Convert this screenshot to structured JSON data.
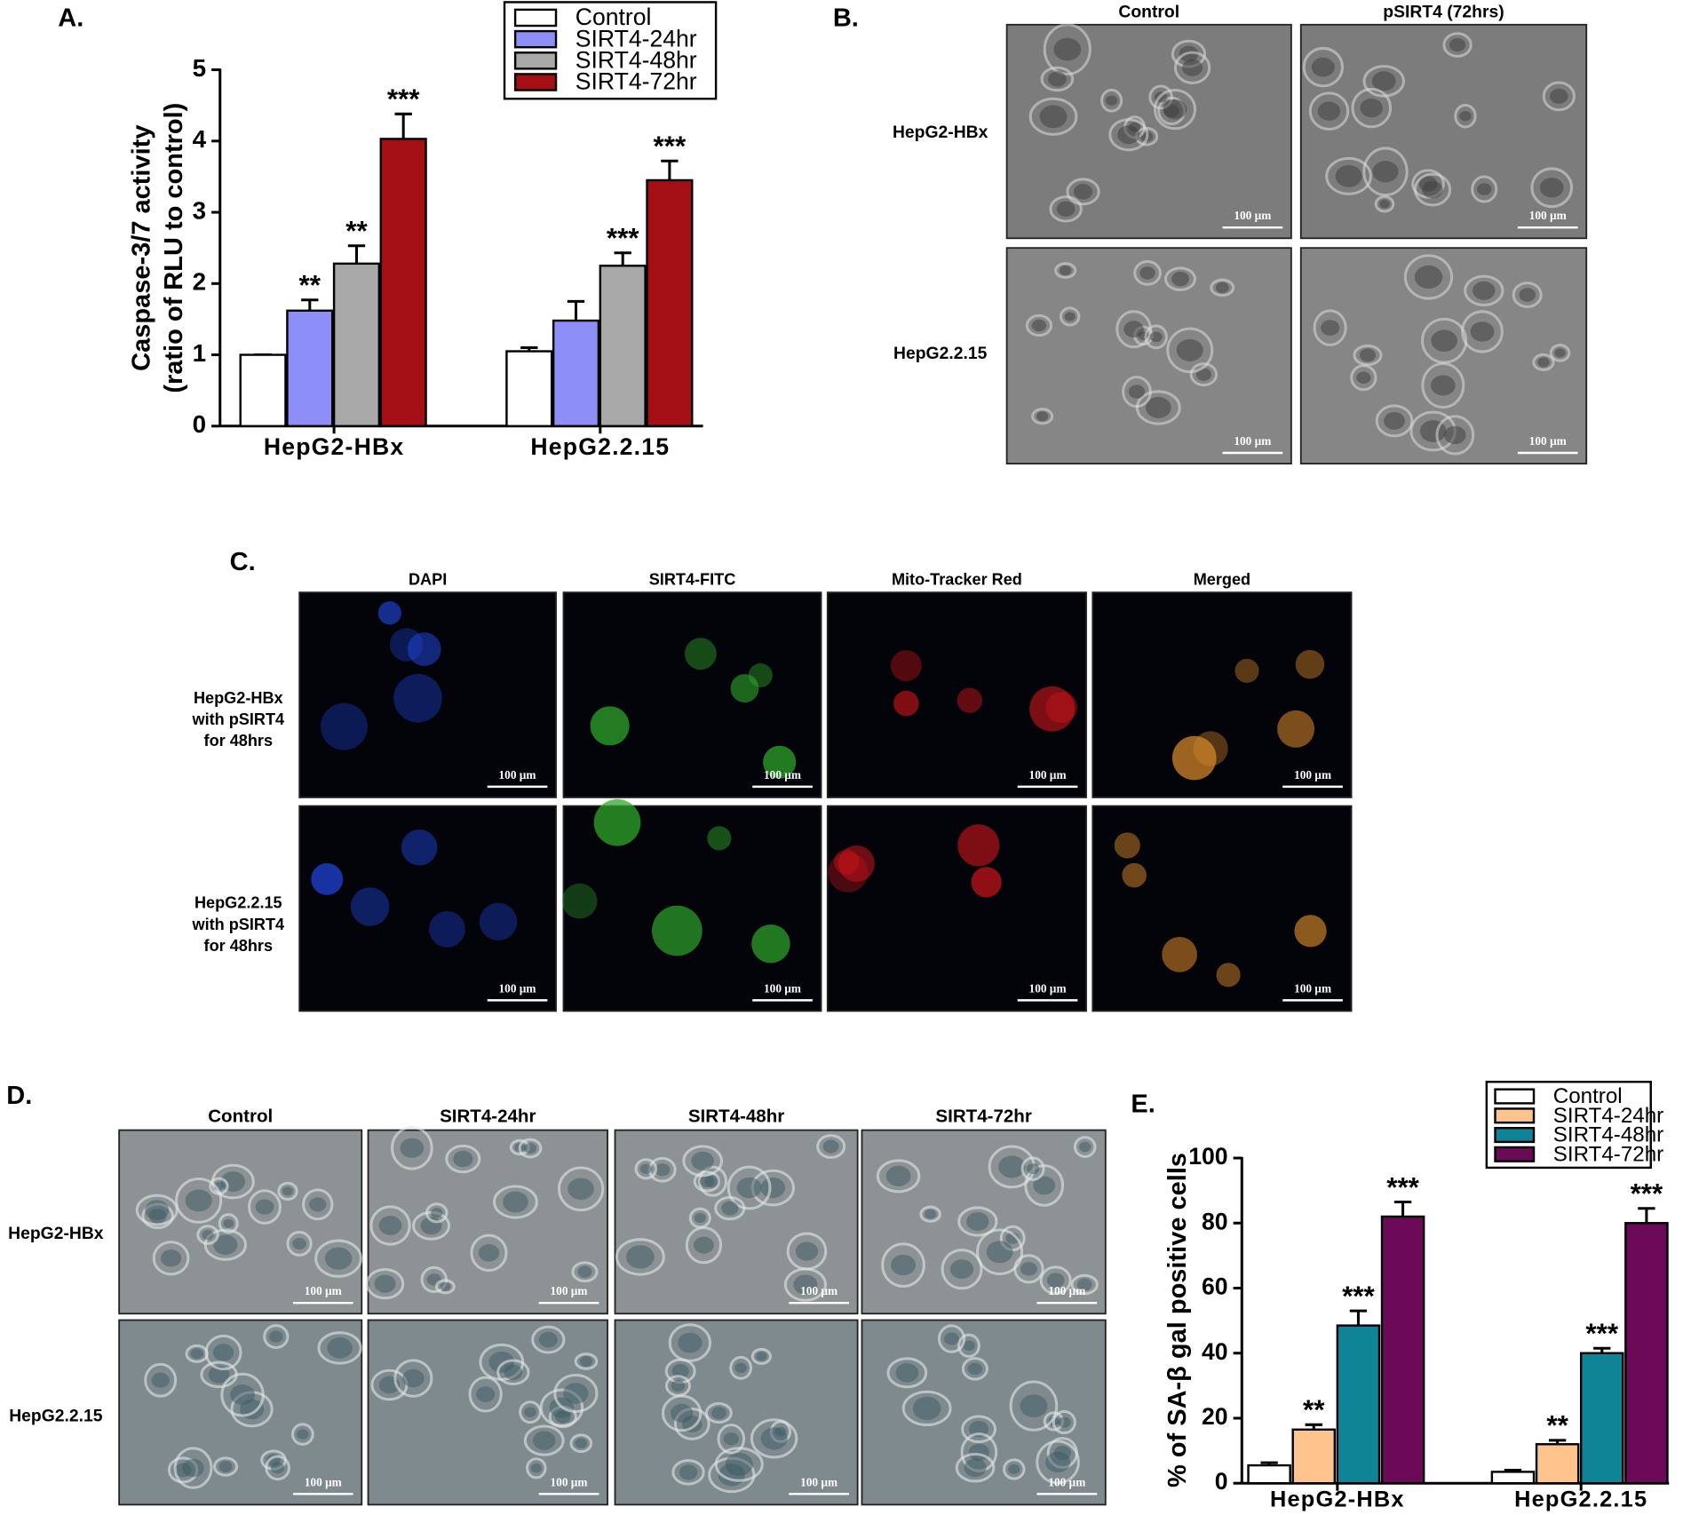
{
  "chart_data": [
    {
      "type": "bar",
      "panel_label": "A.",
      "ylabel": [
        "Caspase-3/7 activity",
        "(ratio of RLU to control)"
      ],
      "categories": [
        "HepG2-HBx",
        "HepG2.2.15"
      ],
      "ylim": [
        0,
        5
      ],
      "yticks": [
        0,
        1,
        2,
        3,
        4,
        5
      ],
      "series": [
        {
          "name": "Control",
          "color": "#ffffff",
          "values": [
            1.0,
            1.05
          ],
          "errors": [
            0.0,
            0.05
          ],
          "significance": [
            null,
            null
          ]
        },
        {
          "name": "SIRT4-24hr",
          "color": "#8e8ef8",
          "values": [
            1.62,
            1.48
          ],
          "errors": [
            0.15,
            0.27
          ],
          "significance": [
            "**",
            null
          ]
        },
        {
          "name": "SIRT4-48hr",
          "color": "#a8a8a8",
          "values": [
            2.28,
            2.25
          ],
          "errors": [
            0.25,
            0.18
          ],
          "significance": [
            "**",
            "***"
          ]
        },
        {
          "name": "SIRT4-72hr",
          "color": "#a30f14",
          "values": [
            4.03,
            3.45
          ],
          "errors": [
            0.35,
            0.27
          ],
          "significance": [
            "***",
            "***"
          ]
        }
      ]
    },
    {
      "type": "bar",
      "panel_label": "E.",
      "ylabel": [
        "% of SA-β gal positive cells"
      ],
      "categories": [
        "HepG2-HBx",
        "HepG2.2.15"
      ],
      "ylim": [
        0,
        100
      ],
      "yticks": [
        0,
        20,
        40,
        60,
        80,
        100
      ],
      "series": [
        {
          "name": "Control",
          "color": "#ffffff",
          "values": [
            5.5,
            3.5
          ],
          "errors": [
            0.8,
            0.5
          ],
          "significance": [
            null,
            null
          ]
        },
        {
          "name": "SIRT4-24hr",
          "color": "#ffc48e",
          "values": [
            16.5,
            12
          ],
          "errors": [
            1.5,
            1.2
          ],
          "significance": [
            "**",
            "**"
          ]
        },
        {
          "name": "SIRT4-48hr",
          "color": "#0f8497",
          "values": [
            48.5,
            40
          ],
          "errors": [
            4.5,
            1.5
          ],
          "significance": [
            "***",
            "***"
          ]
        },
        {
          "name": "SIRT4-72hr",
          "color": "#6b0b58",
          "values": [
            82,
            80
          ],
          "errors": [
            4.5,
            4.5
          ],
          "significance": [
            "***",
            "***"
          ]
        }
      ]
    }
  ],
  "panels": {
    "B": {
      "label": "B.",
      "columns": [
        "Control",
        "pSIRT4 (72hrs)"
      ],
      "rows": [
        [
          "HepG2-HBx"
        ],
        [
          "HepG2.2.15"
        ]
      ],
      "scale_bar": "100 µm"
    },
    "C": {
      "label": "C.",
      "columns": [
        "DAPI",
        "SIRT4-FITC",
        "Mito-Tracker Red",
        "Merged"
      ],
      "rows": [
        [
          "HepG2-HBx",
          "with pSIRT4",
          "for 48hrs"
        ],
        [
          "HepG2.2.15",
          "with pSIRT4",
          "for 48hrs"
        ]
      ],
      "scale_bar": "100 µm"
    },
    "D": {
      "label": "D.",
      "columns": [
        "Control",
        "SIRT4-24hr",
        "SIRT4-48hr",
        "SIRT4-72hr"
      ],
      "rows": [
        [
          "HepG2-HBx"
        ],
        [
          "HepG2.2.15"
        ]
      ],
      "scale_bar": "100 µm"
    }
  }
}
